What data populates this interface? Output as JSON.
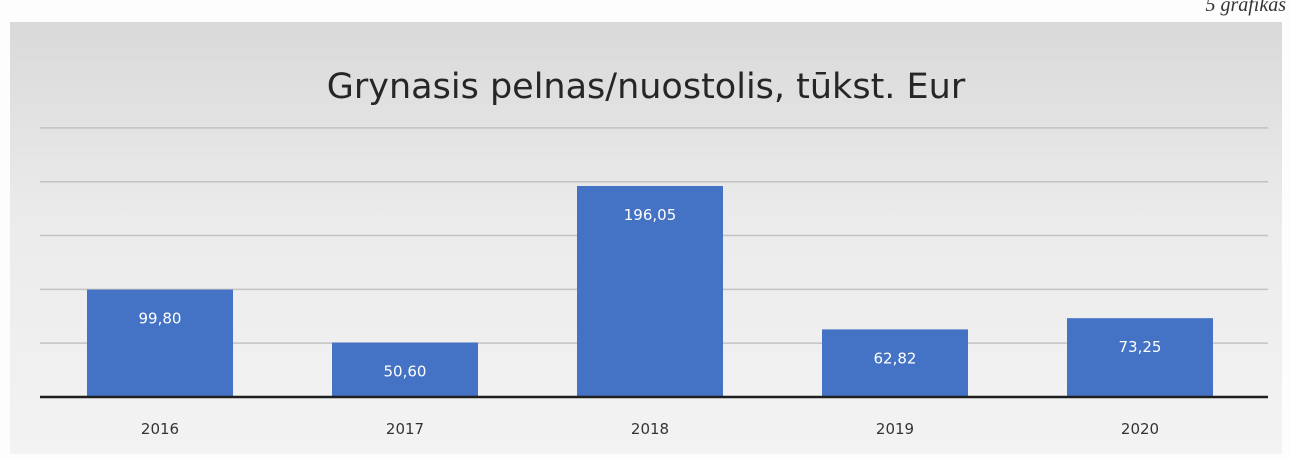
{
  "corner_caption": "5 grafikas",
  "chart_data": {
    "type": "bar",
    "title": "Grynasis pelnas/nuostolis, tūkst. Eur",
    "categories": [
      "2016",
      "2017",
      "2018",
      "2019",
      "2020"
    ],
    "values": [
      99.8,
      50.6,
      196.05,
      62.82,
      73.25
    ],
    "value_labels": [
      "99,80",
      "50,60",
      "196,05",
      "62,82",
      "73,25"
    ],
    "ylim": [
      0,
      250
    ],
    "grid": true,
    "legend": "none",
    "bar_color": "#4472c4"
  }
}
